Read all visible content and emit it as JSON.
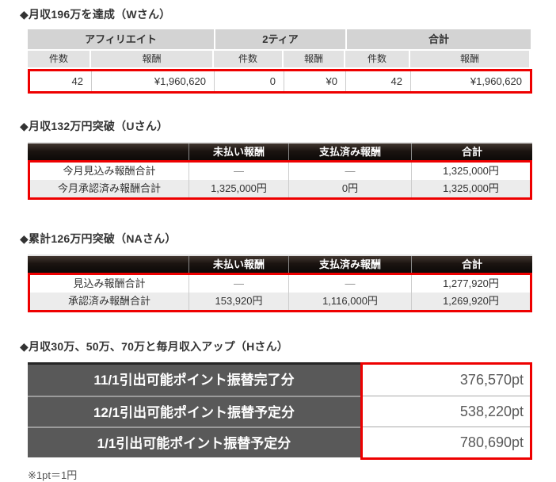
{
  "colors": {
    "accent_red": "#ee0000",
    "header_gray": "#d3d3d3",
    "subheader_gray": "#e2e2e2",
    "dark_header": "#17110e",
    "row_alt": "#ececec",
    "label_gray": "#595959"
  },
  "sections": [
    {
      "title": "◆月収196万を達成（Wさん）",
      "table": {
        "groups": [
          "アフィリエイト",
          "2ティア",
          "合計"
        ],
        "subheaders": [
          "件数",
          "報酬",
          "件数",
          "報酬",
          "件数",
          "報酬"
        ],
        "row": [
          "42",
          "¥1,960,620",
          "0",
          "¥0",
          "42",
          "¥1,960,620"
        ]
      }
    },
    {
      "title": "◆月収132万円突破（Uさん）",
      "table": {
        "headers": [
          "",
          "未払い報酬",
          "支払済み報酬",
          "合計"
        ],
        "rows": [
          [
            "今月見込み報酬合計",
            "—",
            "—",
            "1,325,000円"
          ],
          [
            "今月承認済み報酬合計",
            "1,325,000円",
            "0円",
            "1,325,000円"
          ]
        ]
      }
    },
    {
      "title": "◆累計126万円突破（NAさん）",
      "table": {
        "headers": [
          "",
          "未払い報酬",
          "支払済み報酬",
          "合計"
        ],
        "rows": [
          [
            "見込み報酬合計",
            "—",
            "—",
            "1,277,920円"
          ],
          [
            "承認済み報酬合計",
            "153,920円",
            "1,116,000円",
            "1,269,920円"
          ]
        ]
      }
    },
    {
      "title": "◆月収30万、50万、70万と毎月収入アップ（Hさん）",
      "rows": [
        {
          "label": "11/1引出可能ポイント振替完了分",
          "value": "376,570pt"
        },
        {
          "label": "12/1引出可能ポイント振替予定分",
          "value": "538,220pt"
        },
        {
          "label": "1/1引出可能ポイント振替予定分",
          "value": "780,690pt"
        }
      ],
      "footnote": "※1pt＝1円"
    }
  ]
}
